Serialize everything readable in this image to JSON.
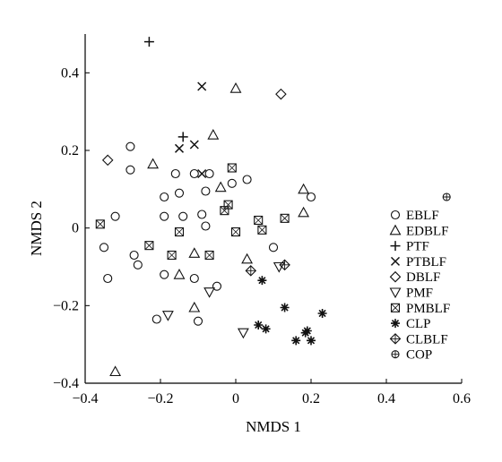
{
  "chart_data": {
    "type": "scatter",
    "title": "",
    "xlabel": "NMDS 1",
    "ylabel": "NMDS 2",
    "xlim": [
      -0.4,
      0.6
    ],
    "ylim": [
      -0.4,
      0.5
    ],
    "xticks": [
      -0.4,
      -0.2,
      0,
      0.2,
      0.4,
      0.6
    ],
    "xtick_labels": [
      "−0.4",
      "−0.2",
      "0",
      "0.2",
      "0.4",
      "0.6"
    ],
    "yticks": [
      -0.4,
      -0.2,
      0,
      0.2,
      0.4
    ],
    "ytick_labels": [
      "−0.4",
      "−0.2",
      "0",
      "0.2",
      "0.4"
    ],
    "grid": false,
    "legend_position": "right",
    "series": [
      {
        "name": "EBLF",
        "marker": "circle",
        "points": [
          [
            -0.28,
            0.21
          ],
          [
            -0.28,
            0.15
          ],
          [
            -0.16,
            0.14
          ],
          [
            -0.11,
            0.14
          ],
          [
            -0.07,
            0.14
          ],
          [
            -0.19,
            0.08
          ],
          [
            -0.15,
            0.09
          ],
          [
            -0.08,
            0.095
          ],
          [
            -0.01,
            0.115
          ],
          [
            0.03,
            0.125
          ],
          [
            -0.32,
            0.03
          ],
          [
            -0.19,
            0.03
          ],
          [
            -0.14,
            0.03
          ],
          [
            -0.09,
            0.035
          ],
          [
            -0.35,
            -0.05
          ],
          [
            -0.27,
            -0.07
          ],
          [
            -0.08,
            0.005
          ],
          [
            -0.26,
            -0.095
          ],
          [
            -0.19,
            -0.12
          ],
          [
            -0.11,
            -0.13
          ],
          [
            -0.34,
            -0.13
          ],
          [
            -0.05,
            -0.15
          ],
          [
            -0.21,
            -0.235
          ],
          [
            -0.1,
            -0.24
          ],
          [
            0.1,
            -0.05
          ],
          [
            0.2,
            0.08
          ]
        ]
      },
      {
        "name": "EDBLF",
        "marker": "triangle-up",
        "points": [
          [
            0.0,
            0.36
          ],
          [
            -0.06,
            0.24
          ],
          [
            -0.22,
            0.165
          ],
          [
            0.18,
            0.1
          ],
          [
            -0.04,
            0.105
          ],
          [
            0.18,
            0.04
          ],
          [
            0.03,
            -0.08
          ],
          [
            -0.15,
            -0.12
          ],
          [
            -0.11,
            -0.065
          ],
          [
            -0.11,
            -0.205
          ],
          [
            -0.32,
            -0.37
          ]
        ]
      },
      {
        "name": "PTF",
        "marker": "plus",
        "points": [
          [
            -0.23,
            0.48
          ],
          [
            -0.14,
            0.235
          ]
        ]
      },
      {
        "name": "PTBLF",
        "marker": "x",
        "points": [
          [
            -0.09,
            0.365
          ],
          [
            -0.15,
            0.205
          ],
          [
            -0.11,
            0.215
          ],
          [
            -0.09,
            0.14
          ]
        ]
      },
      {
        "name": "DBLF",
        "marker": "diamond",
        "points": [
          [
            0.12,
            0.345
          ],
          [
            -0.34,
            0.175
          ]
        ]
      },
      {
        "name": "PMF",
        "marker": "triangle-down",
        "points": [
          [
            -0.07,
            -0.165
          ],
          [
            -0.18,
            -0.225
          ],
          [
            0.02,
            -0.27
          ],
          [
            0.115,
            -0.1
          ]
        ]
      },
      {
        "name": "PMBLF",
        "marker": "boxed-x",
        "points": [
          [
            -0.36,
            0.01
          ],
          [
            -0.01,
            0.155
          ],
          [
            -0.02,
            0.06
          ],
          [
            -0.03,
            0.045
          ],
          [
            0.06,
            0.02
          ],
          [
            0.13,
            0.025
          ],
          [
            0.07,
            -0.005
          ],
          [
            0.0,
            -0.01
          ],
          [
            -0.15,
            -0.01
          ],
          [
            -0.23,
            -0.045
          ],
          [
            -0.07,
            -0.07
          ],
          [
            -0.17,
            -0.07
          ]
        ]
      },
      {
        "name": "CLP",
        "marker": "asterisk",
        "points": [
          [
            0.07,
            -0.135
          ],
          [
            0.13,
            -0.205
          ],
          [
            0.23,
            -0.22
          ],
          [
            0.06,
            -0.25
          ],
          [
            0.08,
            -0.26
          ],
          [
            0.19,
            -0.265
          ],
          [
            0.185,
            -0.27
          ],
          [
            0.16,
            -0.29
          ],
          [
            0.2,
            -0.29
          ]
        ]
      },
      {
        "name": "CLBLF",
        "marker": "diamond-plus",
        "points": [
          [
            0.04,
            -0.11
          ],
          [
            0.13,
            -0.095
          ]
        ]
      },
      {
        "name": "COP",
        "marker": "circle-plus",
        "points": [
          [
            0.56,
            0.08
          ]
        ]
      }
    ]
  }
}
